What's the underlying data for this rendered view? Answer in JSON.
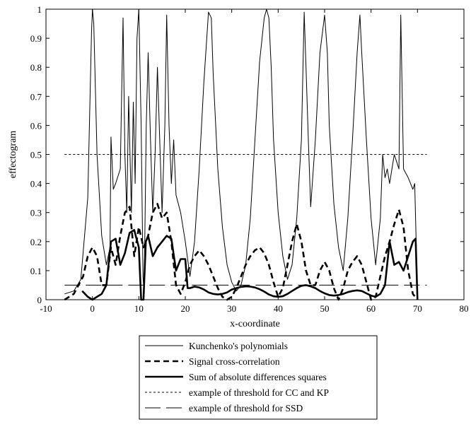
{
  "chart_data": {
    "type": "line",
    "title": "",
    "xlabel": "x-coordinate",
    "ylabel": "effectogram",
    "xlim": [
      -10,
      80
    ],
    "ylim": [
      0,
      1
    ],
    "xticks": [
      "-10",
      "0",
      "10",
      "20",
      "30",
      "40",
      "50",
      "60",
      "70",
      "80"
    ],
    "yticks": [
      "0",
      "0.1",
      "0.2",
      "0.3",
      "0.4",
      "0.5",
      "0.6",
      "0.7",
      "0.8",
      "0.9",
      "1"
    ],
    "grid": false,
    "legend_position": "bottom",
    "series": [
      {
        "name": "Kunchenko's polynomials",
        "style": "thin-solid",
        "x": [
          -6,
          -4,
          -2.5,
          -1,
          -0.2,
          0,
          0.3,
          1,
          2,
          3,
          3.8,
          4,
          4.5,
          5,
          6,
          6.6,
          7,
          7.4,
          7.8,
          8.4,
          8.8,
          9.2,
          9.6,
          10,
          10.5,
          10.9,
          11,
          11.2,
          11.6,
          12,
          12.5,
          13,
          13.5,
          14,
          14.6,
          15,
          15.6,
          16,
          16.5,
          17,
          17.5,
          18,
          19,
          20,
          21,
          22,
          23,
          24,
          25,
          25.6,
          26,
          27,
          28,
          29,
          30,
          31,
          32,
          33,
          34,
          35,
          36,
          37,
          37.5,
          38,
          38.5,
          39,
          40,
          41,
          42,
          43,
          44,
          45,
          45.6,
          46,
          46.5,
          47,
          48,
          49,
          50,
          50.6,
          51,
          52,
          53,
          54,
          55,
          56,
          57,
          57.6,
          58,
          59,
          60,
          61,
          62,
          62.5,
          63,
          63.5,
          64,
          65,
          66,
          66.4,
          67,
          68,
          69,
          69.4,
          70
        ],
        "y": [
          0.02,
          0.03,
          0.07,
          0.35,
          0.92,
          1.0,
          0.95,
          0.5,
          0.22,
          0.12,
          0.18,
          0.56,
          0.38,
          0.4,
          0.45,
          0.97,
          0.5,
          0.3,
          0.7,
          0.3,
          0.68,
          0.4,
          0.9,
          1.0,
          0.6,
          0.08,
          0.05,
          0.1,
          0.6,
          0.85,
          0.55,
          0.3,
          0.5,
          0.8,
          0.5,
          0.3,
          0.6,
          0.98,
          0.6,
          0.4,
          0.55,
          0.36,
          0.3,
          0.2,
          0.08,
          0.2,
          0.45,
          0.75,
          0.99,
          0.97,
          0.78,
          0.45,
          0.25,
          0.12,
          0.06,
          0.03,
          0.05,
          0.12,
          0.28,
          0.55,
          0.82,
          0.97,
          1.0,
          0.97,
          0.8,
          0.55,
          0.3,
          0.15,
          0.07,
          0.12,
          0.28,
          0.55,
          0.99,
          0.8,
          0.55,
          0.32,
          0.55,
          0.85,
          0.98,
          0.85,
          0.6,
          0.33,
          0.18,
          0.1,
          0.28,
          0.55,
          0.85,
          0.98,
          0.85,
          0.55,
          0.28,
          0.12,
          0.28,
          0.5,
          0.42,
          0.45,
          0.4,
          0.5,
          0.45,
          0.98,
          0.45,
          0.42,
          0.38,
          0.4,
          0.02
        ]
      },
      {
        "name": "Signal cross-correlation",
        "style": "thick-dashed",
        "x": [
          -6,
          -4,
          -2,
          -1,
          0,
          1,
          2,
          3,
          4,
          5,
          6,
          7,
          8,
          9,
          10,
          11,
          12,
          13,
          14,
          15,
          16,
          17,
          18,
          19,
          20,
          21,
          22,
          23,
          24,
          25,
          26,
          27,
          28,
          29,
          30,
          31,
          32,
          33,
          34,
          35,
          36,
          37,
          38,
          39,
          40,
          41,
          42,
          43,
          44,
          45,
          46,
          47,
          48,
          49,
          50,
          51,
          52,
          53,
          54,
          55,
          56,
          57,
          58,
          59,
          60,
          61,
          62,
          63,
          64,
          65,
          66,
          67,
          68,
          69,
          70
        ],
        "y": [
          0,
          0.02,
          0.08,
          0.15,
          0.18,
          0.15,
          0.05,
          0.05,
          0.18,
          0.12,
          0.22,
          0.3,
          0.32,
          0.15,
          0.25,
          0.18,
          0.22,
          0.3,
          0.33,
          0.28,
          0.3,
          0.2,
          0.05,
          0.02,
          0.06,
          0.12,
          0.15,
          0.17,
          0.15,
          0.12,
          0.08,
          0.04,
          0.01,
          0,
          0.01,
          0.04,
          0.08,
          0.12,
          0.15,
          0.17,
          0.18,
          0.16,
          0.12,
          0.06,
          0.01,
          0.04,
          0.12,
          0.2,
          0.26,
          0.2,
          0.1,
          0.05,
          0.05,
          0.1,
          0.13,
          0.1,
          0.04,
          0,
          0.04,
          0.1,
          0.13,
          0.15,
          0.12,
          0.06,
          0,
          0.01,
          0.08,
          0.15,
          0.2,
          0.26,
          0.31,
          0.25,
          0.1,
          0.02,
          0
        ]
      },
      {
        "name": "Sum of absolute differences squares",
        "style": "thick-solid",
        "x": [
          -2.2,
          -1,
          0,
          1,
          2,
          3,
          4,
          5,
          6,
          7,
          8,
          9,
          10,
          10.5,
          11,
          11.5,
          12,
          13,
          14,
          15,
          16,
          17,
          18,
          19,
          20,
          20.5,
          21,
          22,
          23,
          24,
          25,
          26,
          27,
          28,
          29,
          30,
          31,
          32,
          33,
          34,
          35,
          36,
          37,
          38,
          39,
          40,
          41,
          42,
          43,
          44,
          45,
          46,
          47,
          48,
          49,
          50,
          51,
          52,
          53,
          54,
          55,
          56,
          57,
          58,
          59,
          60,
          61,
          62,
          63,
          64,
          65,
          66,
          67,
          68,
          69,
          69.6,
          70
        ],
        "y": [
          0.03,
          0.01,
          0.0,
          0.01,
          0.02,
          0.05,
          0.2,
          0.21,
          0.12,
          0.16,
          0.23,
          0.24,
          0.18,
          0.0,
          0.0,
          0.2,
          0.22,
          0.15,
          0.18,
          0.2,
          0.22,
          0.21,
          0.1,
          0.14,
          0.14,
          0.04,
          0.04,
          0.045,
          0.042,
          0.035,
          0.025,
          0.02,
          0.018,
          0.02,
          0.025,
          0.035,
          0.04,
          0.044,
          0.046,
          0.045,
          0.042,
          0.036,
          0.028,
          0.018,
          0.012,
          0.01,
          0.012,
          0.02,
          0.03,
          0.04,
          0.048,
          0.05,
          0.046,
          0.04,
          0.03,
          0.022,
          0.016,
          0.014,
          0.016,
          0.02,
          0.026,
          0.03,
          0.032,
          0.03,
          0.022,
          0.014,
          0.01,
          0.02,
          0.05,
          0.2,
          0.12,
          0.13,
          0.1,
          0.15,
          0.2,
          0.21,
          0.0
        ]
      },
      {
        "name": "example of threshold for CC and KP",
        "style": "thin-dotted",
        "x": [
          -6,
          72
        ],
        "y": [
          0.5,
          0.5
        ]
      },
      {
        "name": "example of threshold for SSD",
        "style": "long-dash",
        "x": [
          -6,
          72
        ],
        "y": [
          0.05,
          0.05
        ]
      }
    ]
  }
}
